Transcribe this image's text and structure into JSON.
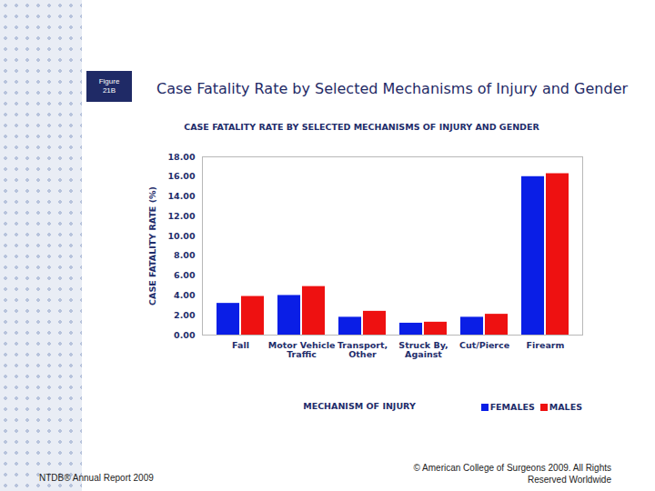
{
  "page": {
    "figure_label": "Figure 21B",
    "heading": "Case Fatality Rate by Selected Mechanisms of Injury and Gender",
    "footer_left": "NTDB® Annual Report 2009",
    "footer_right": "© American College of Surgeons 2009. All Rights Reserved Worldwide"
  },
  "chart_data": {
    "type": "bar",
    "title": "CASE FATALITY RATE BY SELECTED MECHANISMS OF INJURY AND GENDER",
    "x_label": "MECHANISM OF INJURY",
    "y_label": "CASE FATALITY RATE (%)",
    "categories": [
      "Fall",
      "Motor Vehicle Traffic",
      "Transport, Other",
      "Struck By, Against",
      "Cut/Pierce",
      "Firearm"
    ],
    "series": [
      {
        "name": "FEMALES",
        "color": "#0a1ee6",
        "values": [
          3.2,
          4.0,
          1.8,
          1.2,
          1.8,
          16.0
        ]
      },
      {
        "name": "MALES",
        "color": "#ee1111",
        "values": [
          3.9,
          4.9,
          2.4,
          1.3,
          2.1,
          16.3
        ]
      }
    ],
    "ylim": [
      0,
      18
    ],
    "yticks": [
      {
        "value": 0,
        "label": "0.00"
      },
      {
        "value": 2,
        "label": "2.00"
      },
      {
        "value": 4,
        "label": "4.00"
      },
      {
        "value": 6,
        "label": "6.00"
      },
      {
        "value": 8,
        "label": "8.00"
      },
      {
        "value": 10,
        "label": "10.00"
      },
      {
        "value": 12,
        "label": "12.00"
      },
      {
        "value": 14,
        "label": "14.00"
      },
      {
        "value": 16,
        "label": "16.00"
      },
      {
        "value": 18,
        "label": "18.00"
      }
    ],
    "grid": false,
    "legend": "bottom-right"
  }
}
